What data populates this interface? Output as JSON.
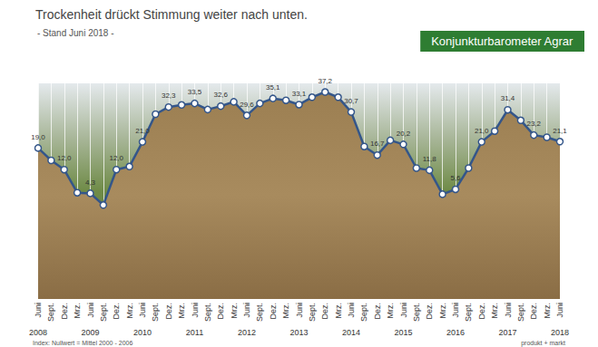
{
  "chart_data": {
    "type": "line",
    "title": "Trockenheit drückt Stimmung weiter nach unten.",
    "subtitle": "- Stand Juni 2018 -",
    "badge": "Konjunkturbarometer Agrar",
    "note": "Index: Nullwert = Mittel 2000 - 2006",
    "source": "produkt + markt",
    "categories": [
      "Juni",
      "Sept.",
      "Dez.",
      "Mrz.",
      "Juni",
      "Sept.",
      "Dez.",
      "Mrz.",
      "Juni",
      "Sept.",
      "Dez.",
      "Mrz.",
      "Juni",
      "Sept.",
      "Dez.",
      "Mrz.",
      "Juni",
      "Sept.",
      "Dez.",
      "Mrz.",
      "Juni",
      "Sept.",
      "Dez.",
      "Mrz.",
      "Juni",
      "Sept.",
      "Dez.",
      "Mrz.",
      "Juni",
      "Sept.",
      "Dez.",
      "Mrz.",
      "Juni",
      "Sept.",
      "Dez.",
      "Mrz.",
      "Juni",
      "Sept.",
      "Dez.",
      "Mrz.",
      "Juni"
    ],
    "years": [
      "2008",
      null,
      null,
      null,
      "2009",
      null,
      null,
      null,
      "2010",
      null,
      null,
      null,
      "2011",
      null,
      null,
      null,
      "2012",
      null,
      null,
      null,
      "2013",
      null,
      null,
      null,
      "2014",
      null,
      null,
      null,
      "2015",
      null,
      null,
      null,
      "2016",
      null,
      null,
      null,
      "2017",
      null,
      null,
      null,
      "2018"
    ],
    "values": [
      19.0,
      15.0,
      12.0,
      4.5,
      4.3,
      0.5,
      12.0,
      13.0,
      21.0,
      30.0,
      32.3,
      33.0,
      33.5,
      31.5,
      32.6,
      34.0,
      29.6,
      33.5,
      35.1,
      34.5,
      33.1,
      35.5,
      37.2,
      35.5,
      30.7,
      19.5,
      16.7,
      21.5,
      20.2,
      12.5,
      11.8,
      4.0,
      5.6,
      12.5,
      21.0,
      24.5,
      31.4,
      28.0,
      23.2,
      22.5,
      21.1
    ],
    "value_labels": [
      "19,0",
      null,
      "12,0",
      null,
      "4,3",
      null,
      "12,0",
      null,
      "21,0",
      null,
      "32,3",
      null,
      "33,5",
      null,
      "32,6",
      null,
      "29,6",
      null,
      "35,1",
      null,
      "33,1",
      null,
      "37,2",
      null,
      "30,7",
      null,
      "16,7",
      null,
      "20,2",
      null,
      "11,8",
      null,
      "5,6",
      null,
      "21,0",
      null,
      "31,4",
      null,
      "23,2",
      null,
      "21,1"
    ],
    "data_labels": true,
    "color": "#34568a",
    "marker": "circle",
    "line_style": "solid",
    "ylim": [
      -30,
      40
    ],
    "yticks": [
      -30,
      -20,
      -10,
      0,
      10,
      20,
      30,
      40
    ],
    "tick_labels": "x",
    "grid": true
  }
}
